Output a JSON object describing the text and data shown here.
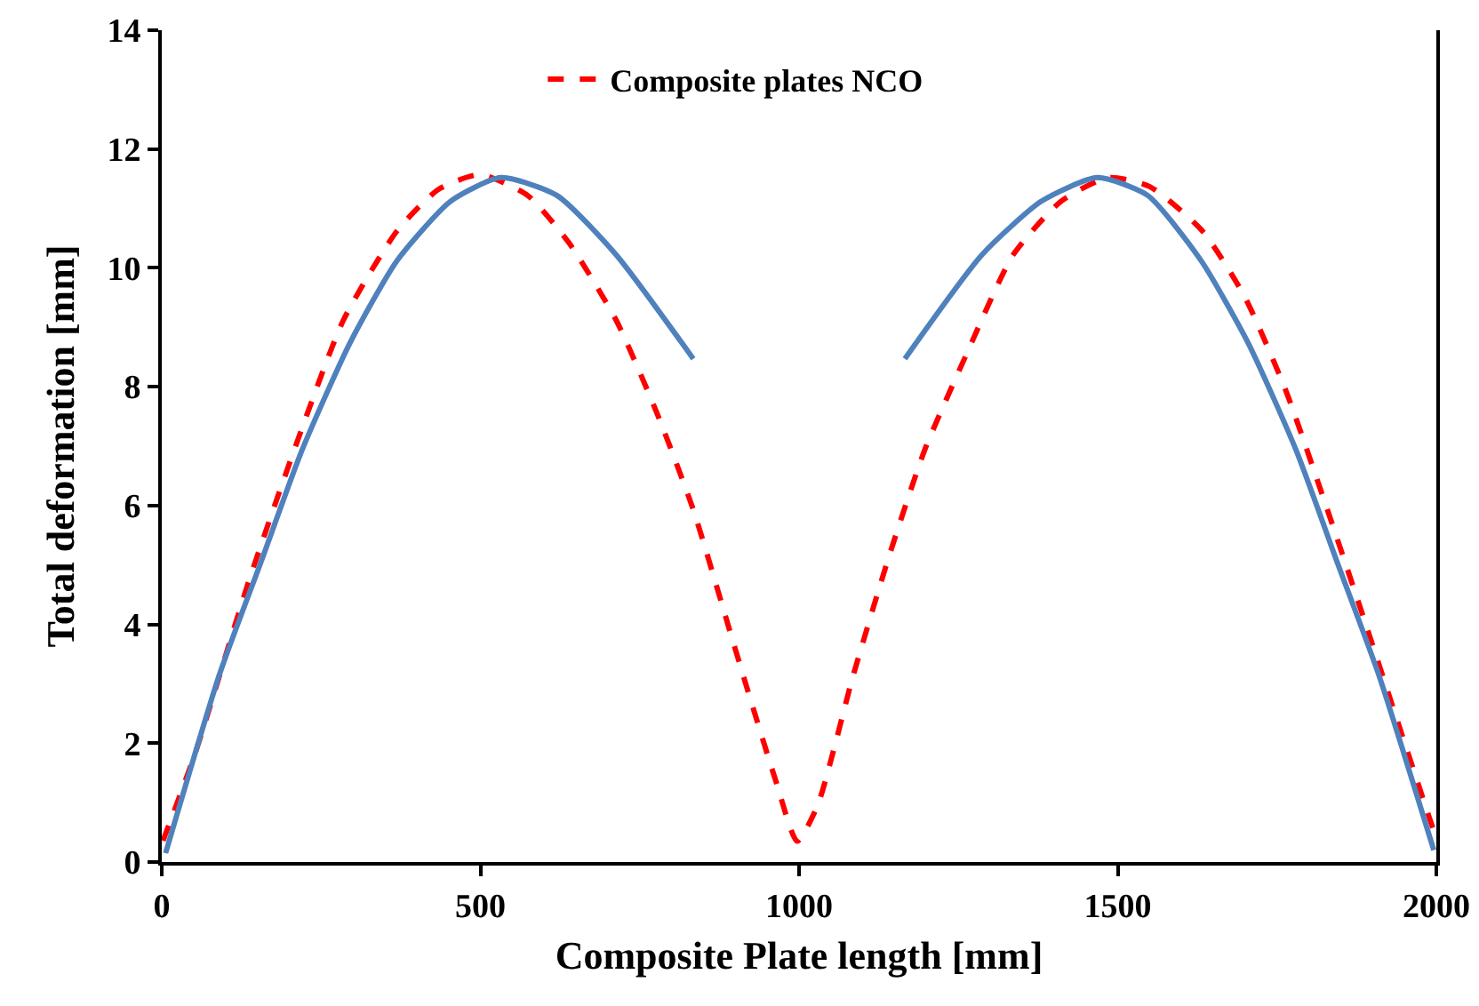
{
  "chart_data": {
    "type": "line",
    "xlabel": "Composite Plate length [mm]",
    "ylabel": "Total deformation [mm]",
    "xlim": [
      0,
      2000
    ],
    "xticks": [
      0,
      500,
      1000,
      1500,
      2000
    ],
    "ylim": [
      0,
      14
    ],
    "yticks": [
      0,
      2,
      4,
      6,
      8,
      10,
      12,
      14
    ],
    "grid": false,
    "legend": "top",
    "marker": "none",
    "series": [
      {
        "name": "Composite plates NCO",
        "color": "#ff0000",
        "line_style": "dashed",
        "x": [
          2,
          53,
          137,
          211,
          285,
          369,
          434,
          499,
          574,
          639,
          713,
          778,
          834,
          890,
          918,
          964,
          997,
          1029,
          1085,
          1141,
          1197,
          1262,
          1336,
          1411,
          1485,
          1550,
          1633,
          1699,
          1764,
          1829,
          1885,
          1940,
          1992,
          2000
        ],
        "values": [
          0.36,
          1.85,
          4.74,
          7.03,
          9.12,
          10.62,
          11.32,
          11.57,
          11.22,
          10.42,
          9.12,
          7.53,
          5.93,
          3.94,
          2.94,
          1.35,
          0.35,
          0.95,
          3.14,
          5.14,
          6.93,
          8.53,
          10.22,
          11.12,
          11.52,
          11.37,
          10.62,
          9.52,
          7.93,
          5.93,
          4.14,
          2.34,
          0.65,
          0.4
        ]
      },
      {
        "color": "#4f81bd",
        "line_style": "solid",
        "x": [
          6,
          90,
          155,
          220,
          295,
          369,
          453,
          532,
          620,
          713,
          834,
          1000,
          1166,
          1287,
          1380,
          1468,
          1547,
          1631,
          1705,
          1780,
          1845,
          1910,
          1996
        ],
        "values": [
          0.15,
          3.14,
          5.03,
          6.93,
          8.73,
          10.12,
          11.12,
          11.52,
          11.22,
          10.22,
          8.47,
          null,
          8.47,
          10.22,
          11.12,
          11.52,
          11.22,
          10.12,
          8.73,
          6.93,
          5.03,
          3.14,
          0.2
        ]
      }
    ]
  }
}
